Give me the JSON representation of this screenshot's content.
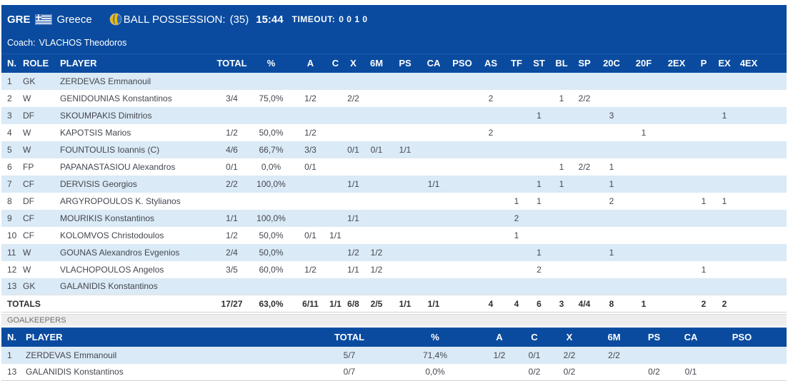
{
  "header": {
    "team_code": "GRE",
    "team_name": "Greece",
    "flag_icon": "greece-flag",
    "ball_icon": "water-polo-ball",
    "possession_label": "BALL POSSESSION:",
    "possession_count": "(35)",
    "possession_time": "15:44",
    "timeout_label": "TIMEOUT:",
    "timeout_values": "0 0 1 0",
    "coach_label": "Coach:",
    "coach_name": "VLACHOS Theodoros"
  },
  "colors": {
    "header_blue": "#0a4b9f",
    "row_alt_blue": "#daeaf6",
    "row_white": "#ffffff",
    "flag_blue": "#3d6db5",
    "ball_yellow": "#f2b705",
    "ball_blue": "#2b6cb8"
  },
  "players_table": {
    "columns": [
      "N.",
      "ROLE",
      "PLAYER",
      "TOTAL",
      "%",
      "A",
      "C",
      "X",
      "6M",
      "PS",
      "CA",
      "PSO",
      "AS",
      "TF",
      "ST",
      "BL",
      "SP",
      "20C",
      "20F",
      "2EX",
      "P",
      "EX",
      "4EX"
    ],
    "rows": [
      [
        "1",
        "GK",
        "ZERDEVAS Emmanouil",
        "",
        "",
        "",
        "",
        "",
        "",
        "",
        "",
        "",
        "",
        "",
        "",
        "",
        "",
        "",
        "",
        "",
        "",
        "",
        ""
      ],
      [
        "2",
        "W",
        "GENIDOUNIAS Konstantinos",
        "3/4",
        "75,0%",
        "1/2",
        "",
        "2/2",
        "",
        "",
        "",
        "",
        "2",
        "",
        "",
        "1",
        "2/2",
        "",
        "",
        "",
        "",
        "",
        ""
      ],
      [
        "3",
        "DF",
        "SKOUMPAKIS Dimitrios",
        "",
        "",
        "",
        "",
        "",
        "",
        "",
        "",
        "",
        "",
        "",
        "1",
        "",
        "",
        "3",
        "",
        "",
        "",
        "1",
        ""
      ],
      [
        "4",
        "W",
        "KAPOTSIS Marios",
        "1/2",
        "50,0%",
        "1/2",
        "",
        "",
        "",
        "",
        "",
        "",
        "2",
        "",
        "",
        "",
        "",
        "",
        "1",
        "",
        "",
        "",
        ""
      ],
      [
        "5",
        "W",
        "FOUNTOULIS Ioannis (C)",
        "4/6",
        "66,7%",
        "3/3",
        "",
        "0/1",
        "0/1",
        "1/1",
        "",
        "",
        "",
        "",
        "",
        "",
        "",
        "",
        "",
        "",
        "",
        "",
        ""
      ],
      [
        "6",
        "FP",
        "PAPANASTASIOU Alexandros",
        "0/1",
        "0,0%",
        "0/1",
        "",
        "",
        "",
        "",
        "",
        "",
        "",
        "",
        "",
        "1",
        "2/2",
        "1",
        "",
        "",
        "",
        "",
        ""
      ],
      [
        "7",
        "CF",
        "DERVISIS Georgios",
        "2/2",
        "100,0%",
        "",
        "",
        "1/1",
        "",
        "",
        "1/1",
        "",
        "",
        "",
        "1",
        "1",
        "",
        "1",
        "",
        "",
        "",
        "",
        ""
      ],
      [
        "8",
        "DF",
        "ARGYROPOULOS K. Stylianos",
        "",
        "",
        "",
        "",
        "",
        "",
        "",
        "",
        "",
        "",
        "1",
        "1",
        "",
        "",
        "2",
        "",
        "",
        "1",
        "1",
        ""
      ],
      [
        "9",
        "CF",
        "MOURIKIS Konstantinos",
        "1/1",
        "100,0%",
        "",
        "",
        "1/1",
        "",
        "",
        "",
        "",
        "",
        "2",
        "",
        "",
        "",
        "",
        "",
        "",
        "",
        "",
        ""
      ],
      [
        "10",
        "CF",
        "KOLOMVOS Christodoulos",
        "1/2",
        "50,0%",
        "0/1",
        "1/1",
        "",
        "",
        "",
        "",
        "",
        "",
        "1",
        "",
        "",
        "",
        "",
        "",
        "",
        "",
        "",
        ""
      ],
      [
        "11",
        "W",
        "GOUNAS Alexandros Evgenios",
        "2/4",
        "50,0%",
        "",
        "",
        "1/2",
        "1/2",
        "",
        "",
        "",
        "",
        "",
        "1",
        "",
        "",
        "1",
        "",
        "",
        "",
        "",
        ""
      ],
      [
        "12",
        "W",
        "VLACHOPOULOS Angelos",
        "3/5",
        "60,0%",
        "1/2",
        "",
        "1/1",
        "1/2",
        "",
        "",
        "",
        "",
        "",
        "2",
        "",
        "",
        "",
        "",
        "",
        "1",
        "",
        ""
      ],
      [
        "13",
        "GK",
        "GALANIDIS Konstantinos",
        "",
        "",
        "",
        "",
        "",
        "",
        "",
        "",
        "",
        "",
        "",
        "",
        "",
        "",
        "",
        "",
        "",
        "",
        "",
        ""
      ]
    ],
    "totals_label": "TOTALS",
    "totals": [
      "17/27",
      "63,0%",
      "6/11",
      "1/1",
      "6/8",
      "2/5",
      "1/1",
      "1/1",
      "",
      "4",
      "4",
      "6",
      "3",
      "4/4",
      "8",
      "1",
      "",
      "2",
      "2",
      ""
    ]
  },
  "goalkeepers": {
    "section_label": "GOALKEEPERS",
    "columns": [
      "N.",
      "PLAYER",
      "TOTAL",
      "%",
      "A",
      "C",
      "X",
      "6M",
      "PS",
      "CA",
      "PSO"
    ],
    "rows": [
      [
        "1",
        "ZERDEVAS Emmanouil",
        "5/7",
        "71,4%",
        "1/2",
        "0/1",
        "2/2",
        "2/2",
        "",
        "",
        ""
      ],
      [
        "13",
        "GALANIDIS Konstantinos",
        "0/7",
        "0,0%",
        "",
        "0/2",
        "0/2",
        "",
        "0/2",
        "0/1",
        ""
      ]
    ]
  }
}
